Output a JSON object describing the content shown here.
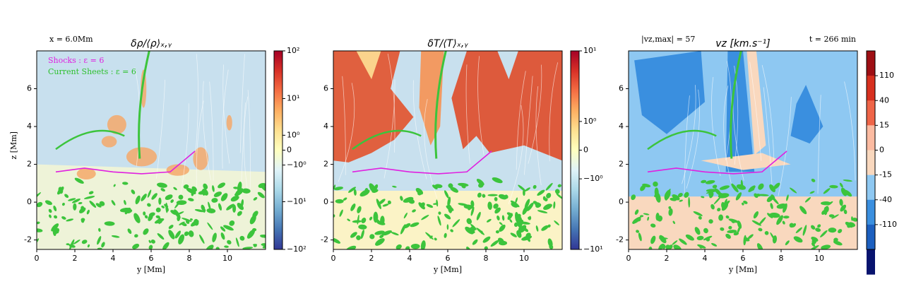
{
  "chart_data": [
    {
      "type": "field",
      "title": "δρ/⟨ρ⟩ₓ,ᵧ",
      "xlabel": "y [Mm]",
      "ylabel": "z [Mm]",
      "xlim": [
        0,
        12
      ],
      "ylim": [
        -2.5,
        8
      ],
      "xticks": [
        0,
        2,
        4,
        6,
        8,
        10
      ],
      "yticks": [
        -2,
        0,
        2,
        4,
        6
      ],
      "annotations": [
        "x = 6.0Mm"
      ],
      "legend": [
        {
          "name": "Shocks : ε = 6",
          "color": "#e020e0"
        },
        {
          "name": "Current Sheets : ε = 6",
          "color": "#2ec02e"
        }
      ],
      "colorbar": {
        "scale": "symlog",
        "lim": [
          -100,
          100
        ],
        "ticks": [
          {
            "value": 100,
            "label": "10²"
          },
          {
            "value": 10,
            "label": "10¹"
          },
          {
            "value": 1,
            "label": "10⁰"
          },
          0,
          {
            "value": -1,
            "label": "−10⁰"
          },
          {
            "value": -10,
            "label": "−10¹"
          },
          {
            "value": -100,
            "label": "−10²"
          }
        ],
        "colors": [
          "#a50026",
          "#d73027",
          "#f46d43",
          "#fdae61",
          "#fee090",
          "#ffffbf",
          "#e0f3f8",
          "#abd9e9",
          "#74add1",
          "#4575b4",
          "#313695"
        ]
      }
    },
    {
      "type": "field",
      "title": "δT/⟨T⟩ₓ,ᵧ",
      "xlabel": "y [Mm]",
      "xlim": [
        0,
        12
      ],
      "ylim": [
        -2.5,
        8
      ],
      "xticks": [
        0,
        2,
        4,
        6,
        8,
        10
      ],
      "yticks": [
        -2,
        0,
        2,
        4,
        6
      ],
      "colorbar": {
        "scale": "symlog",
        "lim": [
          -10,
          10
        ],
        "ticks": [
          {
            "value": 10,
            "label": "10¹"
          },
          {
            "value": 1,
            "label": "10⁰"
          },
          0,
          {
            "value": -1,
            "label": "−10⁰"
          },
          {
            "value": -10,
            "label": "−10¹"
          }
        ],
        "colors": [
          "#a50026",
          "#d73027",
          "#f46d43",
          "#fdae61",
          "#fee090",
          "#ffffbf",
          "#e0f3f8",
          "#abd9e9",
          "#74add1",
          "#4575b4",
          "#313695"
        ]
      }
    },
    {
      "type": "field",
      "title": "vz [km.s⁻¹]",
      "xlabel": "y [Mm]",
      "xlim": [
        0,
        12
      ],
      "ylim": [
        -2.5,
        8
      ],
      "xticks": [
        0,
        2,
        4,
        6,
        8,
        10
      ],
      "yticks": [
        -2,
        0,
        2,
        4,
        6
      ],
      "annotations": [
        "|vz,max| = 57",
        "t = 266 min"
      ],
      "colorbar": {
        "scale": "discrete",
        "ticks": [
          110,
          40,
          15,
          0,
          -15,
          -40,
          -110
        ],
        "colors": [
          "#9e0f14",
          "#d7301f",
          "#ef6548",
          "#fcbba1",
          "#f9d8be",
          "#8ec8f2",
          "#3a8fdf",
          "#1c5fbf",
          "#08136e"
        ]
      }
    }
  ]
}
